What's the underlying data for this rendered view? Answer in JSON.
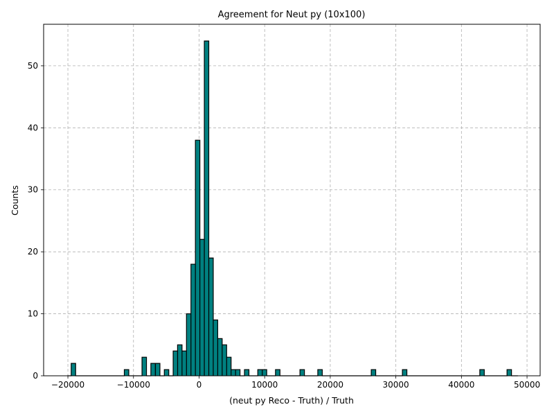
{
  "chart_data": {
    "type": "bar",
    "title": "Agreement for Neut py (10x100)",
    "xlabel": "(neut py Reco - Truth) / Truth",
    "ylabel": "Counts",
    "xlim": [
      -23700,
      52000
    ],
    "ylim": [
      0,
      56.7
    ],
    "grid": true,
    "bar_color": "#008080",
    "edge_color": "#000000",
    "bin_width": 681,
    "bins": [
      {
        "x": -19500,
        "count": 2
      },
      {
        "x": -11400,
        "count": 1
      },
      {
        "x": -8700,
        "count": 3
      },
      {
        "x": -7350,
        "count": 2
      },
      {
        "x": -6650,
        "count": 2
      },
      {
        "x": -5300,
        "count": 1
      },
      {
        "x": -3950,
        "count": 4
      },
      {
        "x": -3280,
        "count": 5
      },
      {
        "x": -2600,
        "count": 4
      },
      {
        "x": -1920,
        "count": 10
      },
      {
        "x": -1240,
        "count": 18
      },
      {
        "x": -560,
        "count": 38
      },
      {
        "x": 120,
        "count": 22
      },
      {
        "x": 800,
        "count": 54
      },
      {
        "x": 1480,
        "count": 19
      },
      {
        "x": 2160,
        "count": 9
      },
      {
        "x": 2840,
        "count": 6
      },
      {
        "x": 3520,
        "count": 5
      },
      {
        "x": 4200,
        "count": 3
      },
      {
        "x": 4880,
        "count": 1
      },
      {
        "x": 5560,
        "count": 1
      },
      {
        "x": 6920,
        "count": 1
      },
      {
        "x": 8950,
        "count": 1
      },
      {
        "x": 9630,
        "count": 1
      },
      {
        "x": 11650,
        "count": 1
      },
      {
        "x": 15380,
        "count": 1
      },
      {
        "x": 18100,
        "count": 1
      },
      {
        "x": 26250,
        "count": 1
      },
      {
        "x": 31000,
        "count": 1
      },
      {
        "x": 42800,
        "count": 1
      },
      {
        "x": 46950,
        "count": 1
      }
    ],
    "hist_range": [
      -20100,
      48600
    ],
    "x_ticks": [
      {
        "value": -20000,
        "label": "−20000"
      },
      {
        "value": -10000,
        "label": "−10000"
      },
      {
        "value": 0,
        "label": "0"
      },
      {
        "value": 10000,
        "label": "10000"
      },
      {
        "value": 20000,
        "label": "20000"
      },
      {
        "value": 30000,
        "label": "30000"
      },
      {
        "value": 40000,
        "label": "40000"
      },
      {
        "value": 50000,
        "label": "50000"
      }
    ],
    "y_ticks": [
      {
        "value": 0,
        "label": "0"
      },
      {
        "value": 10,
        "label": "10"
      },
      {
        "value": 20,
        "label": "20"
      },
      {
        "value": 30,
        "label": "30"
      },
      {
        "value": 40,
        "label": "40"
      },
      {
        "value": 50,
        "label": "50"
      }
    ]
  }
}
